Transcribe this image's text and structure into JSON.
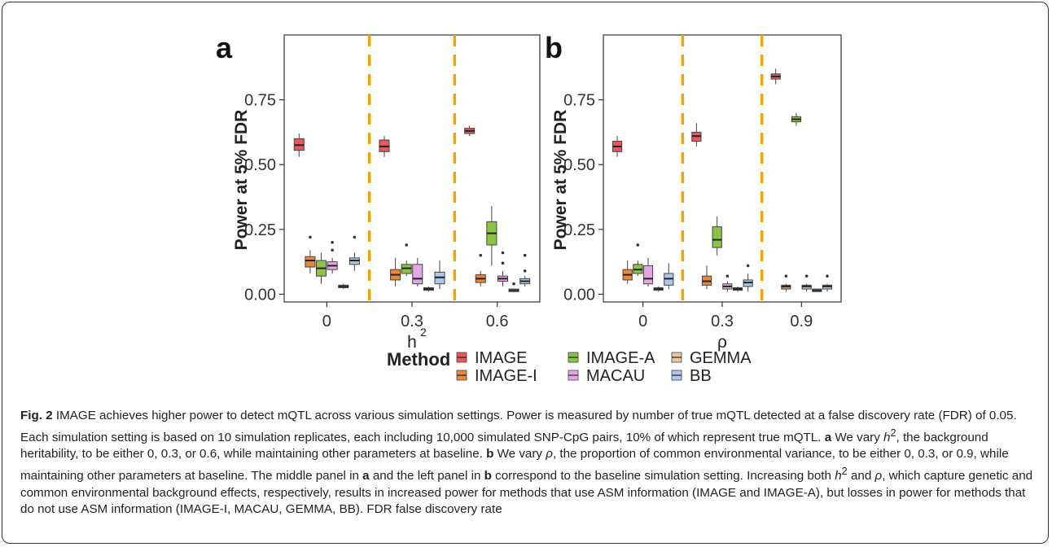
{
  "chart_data": [
    {
      "type": "box",
      "panel_label": "a",
      "ylabel": "Power at 5% FDR",
      "xlabel": "h",
      "xlabel_superscript": "2",
      "categories": [
        "0",
        "0.3",
        "0.6"
      ],
      "yticks": [
        "0.00",
        "0.25",
        "0.50",
        "0.75"
      ],
      "ylim": [
        -0.03,
        1.0
      ],
      "grid": false,
      "separators": "dashed orange vertical lines between groups",
      "series": [
        {
          "name": "IMAGE",
          "boxes": [
            {
              "min": 0.53,
              "q1": 0.555,
              "median": 0.575,
              "q3": 0.6,
              "max": 0.62,
              "outliers": []
            },
            {
              "min": 0.53,
              "q1": 0.55,
              "median": 0.57,
              "q3": 0.595,
              "max": 0.61,
              "outliers": []
            },
            {
              "min": 0.61,
              "q1": 0.62,
              "median": 0.63,
              "q3": 0.64,
              "max": 0.65,
              "outliers": []
            }
          ]
        },
        {
          "name": "IMAGE-I",
          "boxes": [
            {
              "min": 0.08,
              "q1": 0.105,
              "median": 0.13,
              "q3": 0.145,
              "max": 0.17,
              "outliers": [
                0.22
              ]
            },
            {
              "min": 0.03,
              "q1": 0.055,
              "median": 0.075,
              "q3": 0.095,
              "max": 0.14,
              "outliers": []
            },
            {
              "min": 0.03,
              "q1": 0.045,
              "median": 0.06,
              "q3": 0.075,
              "max": 0.09,
              "outliers": [
                0.15
              ]
            }
          ]
        },
        {
          "name": "IMAGE-A",
          "boxes": [
            {
              "min": 0.04,
              "q1": 0.07,
              "median": 0.1,
              "q3": 0.13,
              "max": 0.16,
              "outliers": []
            },
            {
              "min": 0.07,
              "q1": 0.08,
              "median": 0.1,
              "q3": 0.115,
              "max": 0.13,
              "outliers": [
                0.19
              ]
            },
            {
              "min": 0.11,
              "q1": 0.19,
              "median": 0.235,
              "q3": 0.28,
              "max": 0.34,
              "outliers": []
            }
          ]
        },
        {
          "name": "MACAU",
          "boxes": [
            {
              "min": 0.08,
              "q1": 0.095,
              "median": 0.11,
              "q3": 0.125,
              "max": 0.14,
              "outliers": [
                0.17,
                0.2
              ]
            },
            {
              "min": 0.03,
              "q1": 0.04,
              "median": 0.06,
              "q3": 0.115,
              "max": 0.14,
              "outliers": []
            },
            {
              "min": 0.03,
              "q1": 0.05,
              "median": 0.06,
              "q3": 0.07,
              "max": 0.09,
              "outliers": [
                0.12,
                0.16
              ]
            }
          ]
        },
        {
          "name": "GEMMA",
          "boxes": [
            {
              "min": 0.02,
              "q1": 0.025,
              "median": 0.03,
              "q3": 0.035,
              "max": 0.04,
              "outliers": []
            },
            {
              "min": 0.01,
              "q1": 0.015,
              "median": 0.02,
              "q3": 0.025,
              "max": 0.03,
              "outliers": []
            },
            {
              "min": 0.01,
              "q1": 0.01,
              "median": 0.015,
              "q3": 0.02,
              "max": 0.02,
              "outliers": [
                0.04
              ]
            }
          ]
        },
        {
          "name": "BB",
          "boxes": [
            {
              "min": 0.09,
              "q1": 0.115,
              "median": 0.13,
              "q3": 0.14,
              "max": 0.16,
              "outliers": [
                0.22
              ]
            },
            {
              "min": 0.02,
              "q1": 0.04,
              "median": 0.065,
              "q3": 0.085,
              "max": 0.13,
              "outliers": []
            },
            {
              "min": 0.03,
              "q1": 0.04,
              "median": 0.05,
              "q3": 0.06,
              "max": 0.07,
              "outliers": [
                0.09,
                0.15
              ]
            }
          ]
        }
      ]
    },
    {
      "type": "box",
      "panel_label": "b",
      "ylabel": "Power at 5% FDR",
      "xlabel": "ρ",
      "categories": [
        "0",
        "0.3",
        "0.9"
      ],
      "yticks": [
        "0.00",
        "0.25",
        "0.50",
        "0.75"
      ],
      "ylim": [
        -0.03,
        1.0
      ],
      "grid": false,
      "separators": "dashed orange vertical lines between groups",
      "series": [
        {
          "name": "IMAGE",
          "boxes": [
            {
              "min": 0.53,
              "q1": 0.55,
              "median": 0.57,
              "q3": 0.59,
              "max": 0.61,
              "outliers": []
            },
            {
              "min": 0.57,
              "q1": 0.59,
              "median": 0.61,
              "q3": 0.625,
              "max": 0.66,
              "outliers": []
            },
            {
              "min": 0.81,
              "q1": 0.83,
              "median": 0.84,
              "q3": 0.85,
              "max": 0.87,
              "outliers": []
            }
          ]
        },
        {
          "name": "IMAGE-I",
          "boxes": [
            {
              "min": 0.04,
              "q1": 0.055,
              "median": 0.075,
              "q3": 0.095,
              "max": 0.13,
              "outliers": []
            },
            {
              "min": 0.02,
              "q1": 0.035,
              "median": 0.05,
              "q3": 0.07,
              "max": 0.11,
              "outliers": []
            },
            {
              "min": 0.01,
              "q1": 0.02,
              "median": 0.03,
              "q3": 0.035,
              "max": 0.04,
              "outliers": [
                0.07
              ]
            }
          ]
        },
        {
          "name": "IMAGE-A",
          "boxes": [
            {
              "min": 0.07,
              "q1": 0.08,
              "median": 0.095,
              "q3": 0.115,
              "max": 0.13,
              "outliers": [
                0.19
              ]
            },
            {
              "min": 0.15,
              "q1": 0.18,
              "median": 0.21,
              "q3": 0.26,
              "max": 0.3,
              "outliers": []
            },
            {
              "min": 0.65,
              "q1": 0.665,
              "median": 0.675,
              "q3": 0.685,
              "max": 0.7,
              "outliers": []
            }
          ]
        },
        {
          "name": "MACAU",
          "boxes": [
            {
              "min": 0.03,
              "q1": 0.04,
              "median": 0.06,
              "q3": 0.11,
              "max": 0.14,
              "outliers": []
            },
            {
              "min": 0.01,
              "q1": 0.02,
              "median": 0.03,
              "q3": 0.04,
              "max": 0.05,
              "outliers": [
                0.07
              ]
            },
            {
              "min": 0.01,
              "q1": 0.02,
              "median": 0.03,
              "q3": 0.035,
              "max": 0.04,
              "outliers": [
                0.07
              ]
            }
          ]
        },
        {
          "name": "GEMMA",
          "boxes": [
            {
              "min": 0.01,
              "q1": 0.015,
              "median": 0.02,
              "q3": 0.025,
              "max": 0.03,
              "outliers": []
            },
            {
              "min": 0.01,
              "q1": 0.015,
              "median": 0.02,
              "q3": 0.025,
              "max": 0.03,
              "outliers": []
            },
            {
              "min": 0.01,
              "q1": 0.01,
              "median": 0.015,
              "q3": 0.02,
              "max": 0.02,
              "outliers": []
            }
          ]
        },
        {
          "name": "BB",
          "boxes": [
            {
              "min": 0.02,
              "q1": 0.035,
              "median": 0.06,
              "q3": 0.08,
              "max": 0.12,
              "outliers": []
            },
            {
              "min": 0.01,
              "q1": 0.03,
              "median": 0.045,
              "q3": 0.055,
              "max": 0.08,
              "outliers": [
                0.11
              ]
            },
            {
              "min": 0.01,
              "q1": 0.02,
              "median": 0.03,
              "q3": 0.035,
              "max": 0.04,
              "outliers": [
                0.07
              ]
            }
          ]
        }
      ]
    }
  ],
  "legend": {
    "title": "Method",
    "placement": "bottom",
    "items": [
      {
        "name": "IMAGE",
        "color": "#E8575B"
      },
      {
        "name": "IMAGE-I",
        "color": "#E8893A"
      },
      {
        "name": "IMAGE-A",
        "color": "#8CC43F"
      },
      {
        "name": "MACAU",
        "color": "#E6A6E6"
      },
      {
        "name": "GEMMA",
        "color": "#E9C4A6"
      },
      {
        "name": "BB",
        "color": "#A9C8EA"
      }
    ]
  },
  "colors": {
    "separator": "#F0A800",
    "axis": "#333333"
  },
  "caption": {
    "fig_label": "Fig. 2",
    "s1": " IMAGE achieves higher power to detect mQTL across various simulation settings. Power is measured by number of true mQTL detected at a false discovery rate (FDR) of 0.05. Each simulation setting is based on 10 simulation replicates, each including 10,000 simulated SNP-CpG pairs, 10% of which represent true mQTL. ",
    "a1": "a",
    "s2": " We vary ",
    "h1": "h",
    "sup1": "2",
    "s3": ", the background heritability, to be either 0, 0.3, or 0.6, while maintaining other parameters at baseline. ",
    "b1": "b",
    "s4": " We vary ",
    "rho1": "ρ",
    "s5": ", the proportion of common environmental variance, to be either 0, 0.3, or 0.9, while maintaining other parameters at baseline. The middle panel in ",
    "a2": "a",
    "s6": " and the left panel in ",
    "b2": "b",
    "s7": " correspond to the baseline simulation setting. Increasing both ",
    "h2": "h",
    "sup2": "2",
    "s8": " and ",
    "rho2": "ρ",
    "s9": ", which capture genetic and common environmental background effects, respectively, results in increased power for methods that use ASM information (IMAGE and IMAGE-A), but losses in power for methods that do not use ASM information (IMAGE-I, MACAU, GEMMA, BB). FDR false discovery rate"
  }
}
